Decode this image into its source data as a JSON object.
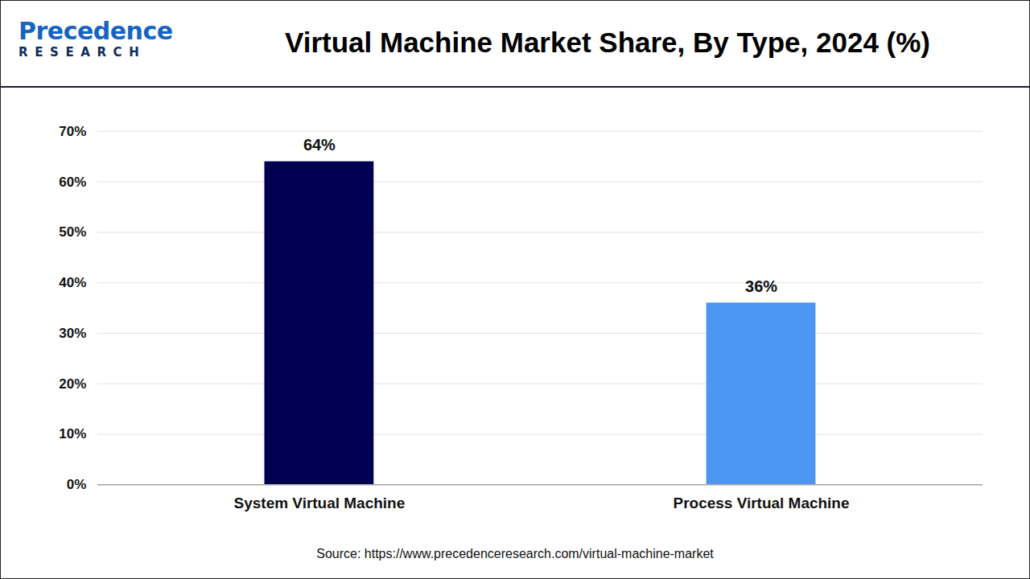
{
  "chart_data": {
    "type": "bar",
    "title": "Virtual Machine Market Share, By Type, 2024 (%)",
    "logo": {
      "name": "Precedence",
      "tagline": "RESEARCH"
    },
    "source": "Source: https://www.precedenceresearch.com/virtual-machine-market",
    "categories": [
      "System Virtual Machine",
      "Process Virtual Machine"
    ],
    "values": [
      64,
      36
    ],
    "value_labels": [
      "64%",
      "36%"
    ],
    "colors": [
      "#000050",
      "#4a96f0"
    ],
    "ylim": [
      0,
      70
    ],
    "yticks": [
      {
        "value": 0,
        "label": "0%"
      },
      {
        "value": 10,
        "label": "10%"
      },
      {
        "value": 20,
        "label": "20%"
      },
      {
        "value": 30,
        "label": "30%"
      },
      {
        "value": 40,
        "label": "40%"
      },
      {
        "value": 50,
        "label": "50%"
      },
      {
        "value": 60,
        "label": "60%"
      },
      {
        "value": 70,
        "label": "70%"
      }
    ],
    "grid": true,
    "data_labels": true
  }
}
